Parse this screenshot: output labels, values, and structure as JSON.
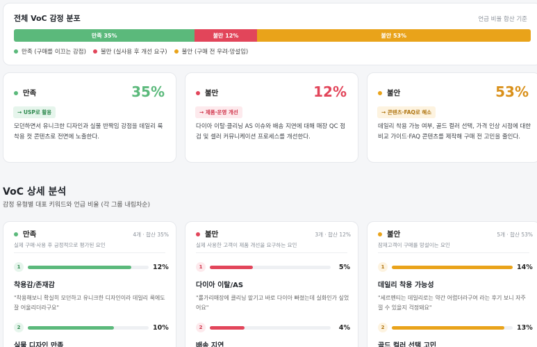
{
  "colors": {
    "pos": "#5bb97b",
    "neg": "#e2455a",
    "neu": "#e9a31a"
  },
  "distribution": {
    "title": "전체 VoC 감정 분포",
    "note": "언급 비율 합산 기준",
    "segments": [
      {
        "label": "만족 35%",
        "percent": 35,
        "color": "#5bb97b"
      },
      {
        "label": "불만 12%",
        "percent": 12,
        "color": "#e2455a"
      },
      {
        "label": "불안 53%",
        "percent": 53,
        "color": "#e9a31a"
      }
    ],
    "legend": [
      "만족 (구매를 이끄는 강점)",
      "불만 (실사용 후 개선 요구)",
      "불안 (구매 전 우려·망설임)"
    ]
  },
  "summary": [
    {
      "name": "만족",
      "pct": "35%",
      "tag": "→ USP로 활용",
      "desc": "모던하면서 유니크한 디자인과 실물 반짝임 강점을 데일리 룩 착용 컷 콘텐츠로 전면에 노출한다."
    },
    {
      "name": "불만",
      "pct": "12%",
      "tag": "→ 제품·운영 개선",
      "desc": "다이아 이탈·클리닝 AS 이슈와 배송 지연에 대해 매장 QC 점검 및 셀러 커뮤니케이션 프로세스를 개선한다."
    },
    {
      "name": "불안",
      "pct": "53%",
      "tag": "→ 콘텐츠·FAQ로 해소",
      "desc": "데일리 착용 가능 여부, 골드 컬러 선택, 가격 인상 시점에 대한 비교 가이드·FAQ 콘텐츠를 제작해 구매 전 고민을 줄인다."
    }
  ],
  "section": {
    "title": "VoC 상세 분석",
    "subtitle": "감정 유형별 대표 키워드와 언급 비율 (각 그룹 내림차순)"
  },
  "details": [
    {
      "name": "만족",
      "meta": "4개 · 합산 35%",
      "sub": "실제 구매·사용 후 긍정적으로 평가된 요인",
      "items": [
        {
          "rank": "1",
          "pct": "12%",
          "value": 12,
          "name": "착용감/존재감",
          "quote": "\"착용해보니 확실히 모던하고 유니크한 디자인이라 데일리 룩에도 잘 어울리더라구요\""
        },
        {
          "rank": "2",
          "pct": "10%",
          "value": 10,
          "name": "실물 디자인 만족",
          "quote": ""
        }
      ]
    },
    {
      "name": "불만",
      "meta": "3개 · 합산 12%",
      "sub": "실제 사용한 고객이 제품 개선을 요구하는 요인",
      "items": [
        {
          "rank": "1",
          "pct": "5%",
          "value": 5,
          "name": "다이아 이탈/AS",
          "quote": "\"롤가리매장에 클리닝 맡기고 바로 다이아 빠졌는데 실화인가 싶었어요\""
        },
        {
          "rank": "2",
          "pct": "4%",
          "value": 4,
          "name": "배송 지연",
          "quote": ""
        }
      ]
    },
    {
      "name": "불안",
      "meta": "5개 · 합산 53%",
      "sub": "잠재고객이 구매를 망설이는 요인",
      "items": [
        {
          "rank": "1",
          "pct": "14%",
          "value": 14,
          "name": "데일리 착용 가능성",
          "quote": "\"세르펜티는 데일리로는 약간 어렵더라구여 라는 후기 보니 자주 낄 수 있을지 걱정돼요\""
        },
        {
          "rank": "2",
          "pct": "13%",
          "value": 13,
          "name": "골드 컬러 선택 고민",
          "quote": ""
        }
      ]
    }
  ]
}
